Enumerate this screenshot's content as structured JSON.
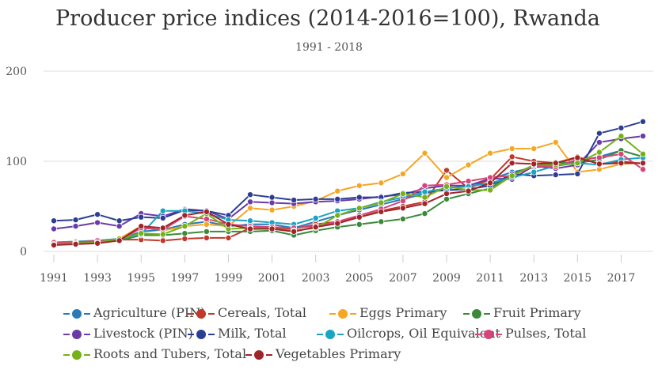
{
  "chart_data": {
    "type": "line",
    "title": "Producer price indices (2014-2016=100), Rwanda",
    "subtitle": "1991 - 2018",
    "xlabel": "",
    "ylabel": "",
    "ylim": [
      0,
      200
    ],
    "xlim": [
      1991,
      2018
    ],
    "y_ticks": [
      "0",
      "100",
      "200"
    ],
    "x_ticks": [
      "1991",
      "1993",
      "1995",
      "1997",
      "1999",
      "2001",
      "2003",
      "2005",
      "2007",
      "2009",
      "2011",
      "2013",
      "2015",
      "2017"
    ],
    "grid": "horizontal",
    "legend_position": "bottom",
    "x": [
      1991,
      1992,
      1993,
      1994,
      1995,
      1996,
      1997,
      1998,
      1999,
      2000,
      2001,
      2002,
      2003,
      2004,
      2005,
      2006,
      2007,
      2008,
      2009,
      2010,
      2011,
      2012,
      2013,
      2014,
      2015,
      2016,
      2017,
      2018
    ],
    "series": [
      {
        "name": "Agriculture (PIN)",
        "color": "#2a7ab9",
        "values": [
          9,
          10,
          11,
          13,
          22,
          24,
          30,
          33,
          28,
          30,
          30,
          26,
          33,
          40,
          46,
          52,
          58,
          64,
          70,
          73,
          80,
          88,
          93,
          96,
          100,
          105,
          112,
          105
        ]
      },
      {
        "name": "Cereals, Total",
        "color": "#c0392b",
        "values": [
          9,
          9,
          11,
          13,
          13,
          12,
          14,
          15,
          15,
          26,
          26,
          25,
          30,
          33,
          38,
          45,
          50,
          55,
          90,
          70,
          80,
          105,
          100,
          98,
          105,
          97,
          100,
          97
        ]
      },
      {
        "name": "Eggs Primary",
        "color": "#f5a623",
        "values": [
          10,
          11,
          12,
          14,
          28,
          23,
          28,
          30,
          28,
          48,
          46,
          50,
          56,
          67,
          73,
          76,
          86,
          109,
          82,
          96,
          109,
          114,
          114,
          121,
          88,
          91,
          97,
          98
        ]
      },
      {
        "name": "Fruit Primary",
        "color": "#3a8a3a",
        "values": [
          8,
          9,
          10,
          12,
          18,
          18,
          20,
          22,
          22,
          22,
          23,
          18,
          23,
          27,
          30,
          33,
          36,
          42,
          58,
          64,
          70,
          86,
          95,
          99,
          98,
          102,
          112,
          105
        ]
      },
      {
        "name": "Livestock (PIN)",
        "color": "#6a3aa8",
        "values": [
          25,
          28,
          32,
          28,
          42,
          39,
          47,
          45,
          36,
          55,
          54,
          53,
          55,
          56,
          58,
          61,
          63,
          70,
          73,
          73,
          81,
          80,
          95,
          92,
          96,
          121,
          125,
          128
        ]
      },
      {
        "name": "Milk, Total",
        "color": "#2c3e94",
        "values": [
          34,
          35,
          41,
          34,
          38,
          37,
          46,
          45,
          40,
          63,
          60,
          57,
          58,
          58,
          60,
          60,
          65,
          66,
          68,
          69,
          73,
          86,
          84,
          85,
          86,
          131,
          137,
          144
        ]
      },
      {
        "name": "Oilcrops, Oil Equivalent",
        "color": "#1aa3c2",
        "values": [
          10,
          11,
          12,
          14,
          19,
          45,
          45,
          42,
          35,
          34,
          32,
          30,
          37,
          45,
          48,
          55,
          60,
          66,
          70,
          72,
          76,
          82,
          88,
          95,
          98,
          96,
          102,
          104
        ]
      },
      {
        "name": "Pulses, Total",
        "color": "#d6457a",
        "values": [
          10,
          10,
          12,
          12,
          26,
          24,
          39,
          36,
          30,
          28,
          27,
          26,
          28,
          33,
          40,
          47,
          56,
          73,
          74,
          78,
          82,
          84,
          95,
          94,
          102,
          104,
          108,
          91
        ]
      },
      {
        "name": "Roots and Tubers, Total",
        "color": "#74b11a",
        "values": [
          8,
          9,
          10,
          14,
          20,
          19,
          28,
          42,
          25,
          26,
          25,
          23,
          26,
          40,
          48,
          54,
          64,
          60,
          72,
          68,
          68,
          84,
          96,
          96,
          98,
          110,
          128,
          108
        ]
      },
      {
        "name": "Vegetables Primary",
        "color": "#a0252a",
        "values": [
          7,
          8,
          9,
          12,
          28,
          26,
          40,
          44,
          30,
          25,
          25,
          22,
          27,
          31,
          38,
          44,
          48,
          53,
          64,
          67,
          76,
          98,
          97,
          98,
          104,
          97,
          98,
          98
        ]
      }
    ]
  }
}
